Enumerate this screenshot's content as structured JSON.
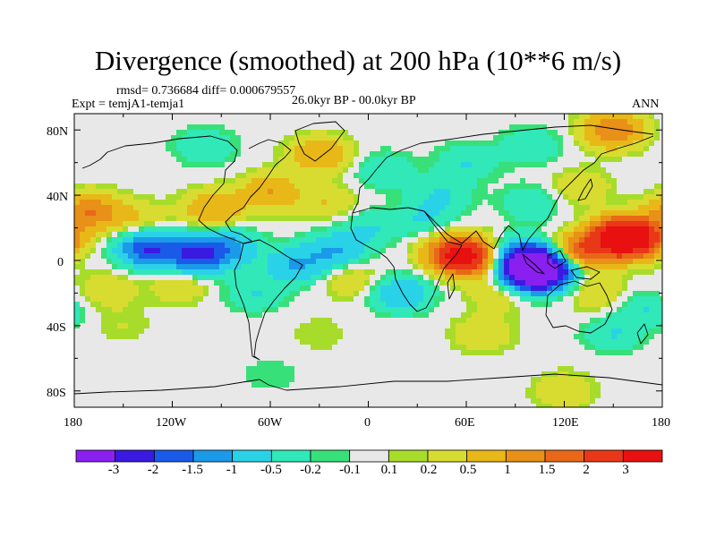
{
  "title": "Divergence (smoothed) at 200 hPa (10**6 m/s)",
  "stats_line": "rmsd= 0.736684 diff= 0.000679557",
  "experiment": "Expt = temjA1-temja1",
  "period": "26.0kyr BP - 00.0kyr BP",
  "season": "ANN",
  "lat_ticks": [
    "80N",
    "40N",
    "0",
    "40S",
    "80S"
  ],
  "lon_ticks": [
    "180",
    "120W",
    "60W",
    "0",
    "60E",
    "120E",
    "180"
  ],
  "colorbar": {
    "colors": [
      "#8a20f0",
      "#3a1ae0",
      "#1a5ae8",
      "#1a9ae8",
      "#2ad2e8",
      "#30e8b8",
      "#38e07a",
      "#e8e8e8",
      "#a8dc2a",
      "#d8dc30",
      "#e8b818",
      "#e89018",
      "#e86818",
      "#e83818",
      "#e81010"
    ],
    "labels": [
      "-3",
      "-2",
      "-1.5",
      "-1",
      "-0.5",
      "-0.2",
      "-0.1",
      "0.1",
      "0.2",
      "0.5",
      "1",
      "1.5",
      "2",
      "3"
    ]
  },
  "map_data": {
    "field": "200 hPa divergence anomaly",
    "blobs": [
      {
        "lon": 155,
        "lat": 15,
        "v": 3
      },
      {
        "lon": 163,
        "lat": 13,
        "v": 2.5
      },
      {
        "lon": 130,
        "lat": 5,
        "v": 2
      },
      {
        "lon": 60,
        "lat": 2,
        "v": 2.5
      },
      {
        "lon": 52,
        "lat": 5,
        "v": 1.5
      },
      {
        "lon": 100,
        "lat": -8,
        "v": -3
      },
      {
        "lon": 110,
        "lat": -5,
        "v": -2.5
      },
      {
        "lon": 95,
        "lat": 2,
        "v": -2
      },
      {
        "lon": -135,
        "lat": 7,
        "v": -2
      },
      {
        "lon": -105,
        "lat": 3,
        "v": -2
      },
      {
        "lon": -85,
        "lat": 8,
        "v": -1
      },
      {
        "lon": -45,
        "lat": -3,
        "v": -1
      },
      {
        "lon": -20,
        "lat": 6,
        "v": -1
      },
      {
        "lon": -170,
        "lat": 30,
        "v": 1.5
      },
      {
        "lon": -140,
        "lat": 25,
        "v": 0.5
      },
      {
        "lon": -95,
        "lat": 32,
        "v": 1
      },
      {
        "lon": -60,
        "lat": 42,
        "v": 1
      },
      {
        "lon": -25,
        "lat": 35,
        "v": 0.5
      },
      {
        "lon": -160,
        "lat": -18,
        "v": 0.5
      },
      {
        "lon": -115,
        "lat": -15,
        "v": 0.5
      },
      {
        "lon": -70,
        "lat": -20,
        "v": -0.5
      },
      {
        "lon": -10,
        "lat": -12,
        "v": 0.5
      },
      {
        "lon": 20,
        "lat": -20,
        "v": -1
      },
      {
        "lon": 80,
        "lat": -20,
        "v": 0.5
      },
      {
        "lon": 140,
        "lat": -20,
        "v": 0.5
      },
      {
        "lon": 170,
        "lat": -30,
        "v": -0.5
      },
      {
        "lon": -150,
        "lat": -40,
        "v": 0.2
      },
      {
        "lon": -30,
        "lat": -45,
        "v": 0.2
      },
      {
        "lon": 70,
        "lat": -45,
        "v": 0.5
      },
      {
        "lon": 150,
        "lat": -45,
        "v": -0.5
      },
      {
        "lon": 0,
        "lat": 20,
        "v": -0.5
      },
      {
        "lon": 35,
        "lat": 25,
        "v": -0.5
      },
      {
        "lon": 45,
        "lat": 40,
        "v": -0.5
      },
      {
        "lon": 100,
        "lat": 35,
        "v": -0.5
      },
      {
        "lon": 130,
        "lat": 45,
        "v": 0.5
      },
      {
        "lon": 10,
        "lat": 55,
        "v": -0.5
      },
      {
        "lon": 60,
        "lat": 60,
        "v": -0.5
      },
      {
        "lon": 100,
        "lat": 70,
        "v": -0.5
      },
      {
        "lon": -100,
        "lat": 70,
        "v": -0.5
      },
      {
        "lon": -30,
        "lat": 65,
        "v": 1
      },
      {
        "lon": 150,
        "lat": 80,
        "v": 1.5
      },
      {
        "lon": -60,
        "lat": -70,
        "v": -0.2
      },
      {
        "lon": 120,
        "lat": -80,
        "v": 0.5
      }
    ]
  }
}
